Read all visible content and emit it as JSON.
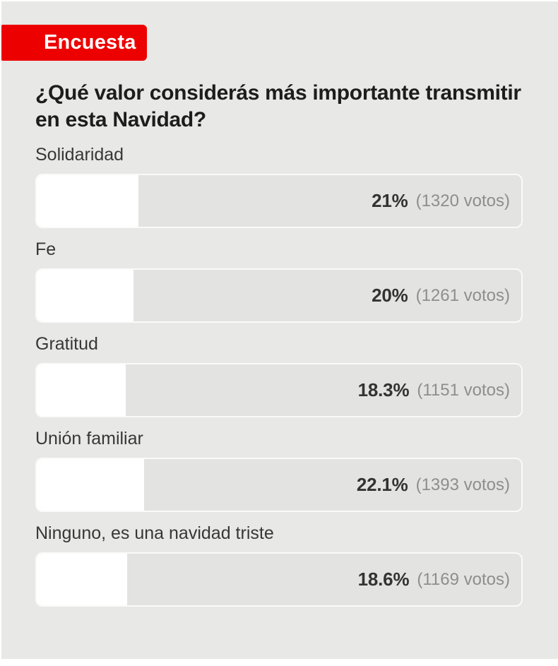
{
  "badge": {
    "label": "Encuesta"
  },
  "question": "¿Qué valor considerás más importante transmitir en esta Navidad?",
  "colors": {
    "badge_red": "#ed0000",
    "card_background": "#e8e8e6",
    "bar_background": "#e3e3e1",
    "bar_fill": "#ffffff",
    "title_text": "#1d1d1b",
    "label_text": "#373737",
    "percent_text": "#333333",
    "votes_text": "#8e8e8c"
  },
  "chart_data": {
    "type": "bar",
    "title": "¿Qué valor considerás más importante transmitir en esta Navidad?",
    "unit": "%",
    "xlim": [
      0,
      100
    ],
    "categories": [
      "Solidaridad",
      "Fe",
      "Gratitud",
      "Unión familiar",
      "Ninguno, es una navidad triste"
    ],
    "values": [
      21,
      20,
      18.3,
      22.1,
      18.6
    ],
    "votes": [
      1320,
      1261,
      1151,
      1393,
      1169
    ],
    "rows": [
      {
        "label": "Solidaridad",
        "percent_label": "21%",
        "percent_value": 21,
        "votes": 1320,
        "votes_label": "(1320 votos)"
      },
      {
        "label": "Fe",
        "percent_label": "20%",
        "percent_value": 20,
        "votes": 1261,
        "votes_label": "(1261 votos)"
      },
      {
        "label": "Gratitud",
        "percent_label": "18.3%",
        "percent_value": 18.3,
        "votes": 1151,
        "votes_label": "(1151 votos)"
      },
      {
        "label": "Unión familiar",
        "percent_label": "22.1%",
        "percent_value": 22.1,
        "votes": 1393,
        "votes_label": "(1393 votos)"
      },
      {
        "label": "Ninguno, es una navidad triste",
        "percent_label": "18.6%",
        "percent_value": 18.6,
        "votes": 1169,
        "votes_label": "(1169 votos)"
      }
    ]
  }
}
